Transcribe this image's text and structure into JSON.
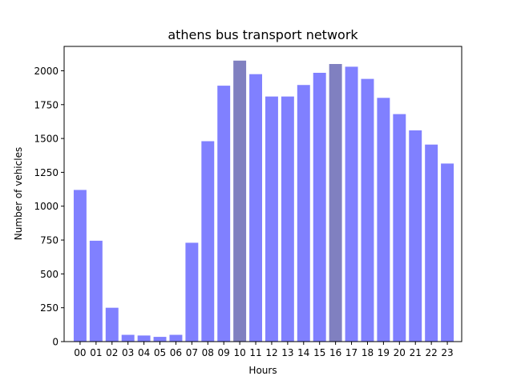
{
  "chart_data": {
    "type": "bar",
    "title": "athens bus transport network",
    "xlabel": "Hours",
    "ylabel": "Number of vehicles",
    "categories": [
      "00",
      "01",
      "02",
      "03",
      "04",
      "05",
      "06",
      "07",
      "08",
      "09",
      "10",
      "11",
      "12",
      "13",
      "14",
      "15",
      "16",
      "17",
      "18",
      "19",
      "20",
      "21",
      "22",
      "23"
    ],
    "values": [
      1120,
      745,
      250,
      50,
      45,
      35,
      50,
      730,
      1480,
      1890,
      2075,
      1975,
      1810,
      1810,
      1895,
      1985,
      2050,
      2030,
      1940,
      1800,
      1680,
      1560,
      1455,
      1315
    ],
    "highlight_indices": [
      10,
      16
    ],
    "ylim": [
      0,
      2180
    ],
    "yticks": [
      0,
      250,
      500,
      750,
      1000,
      1250,
      1500,
      1750,
      2000
    ],
    "grid": false,
    "colors": {
      "bar": "#8080ff",
      "bar_highlight": "#8080c0",
      "axis": "#000000"
    }
  }
}
